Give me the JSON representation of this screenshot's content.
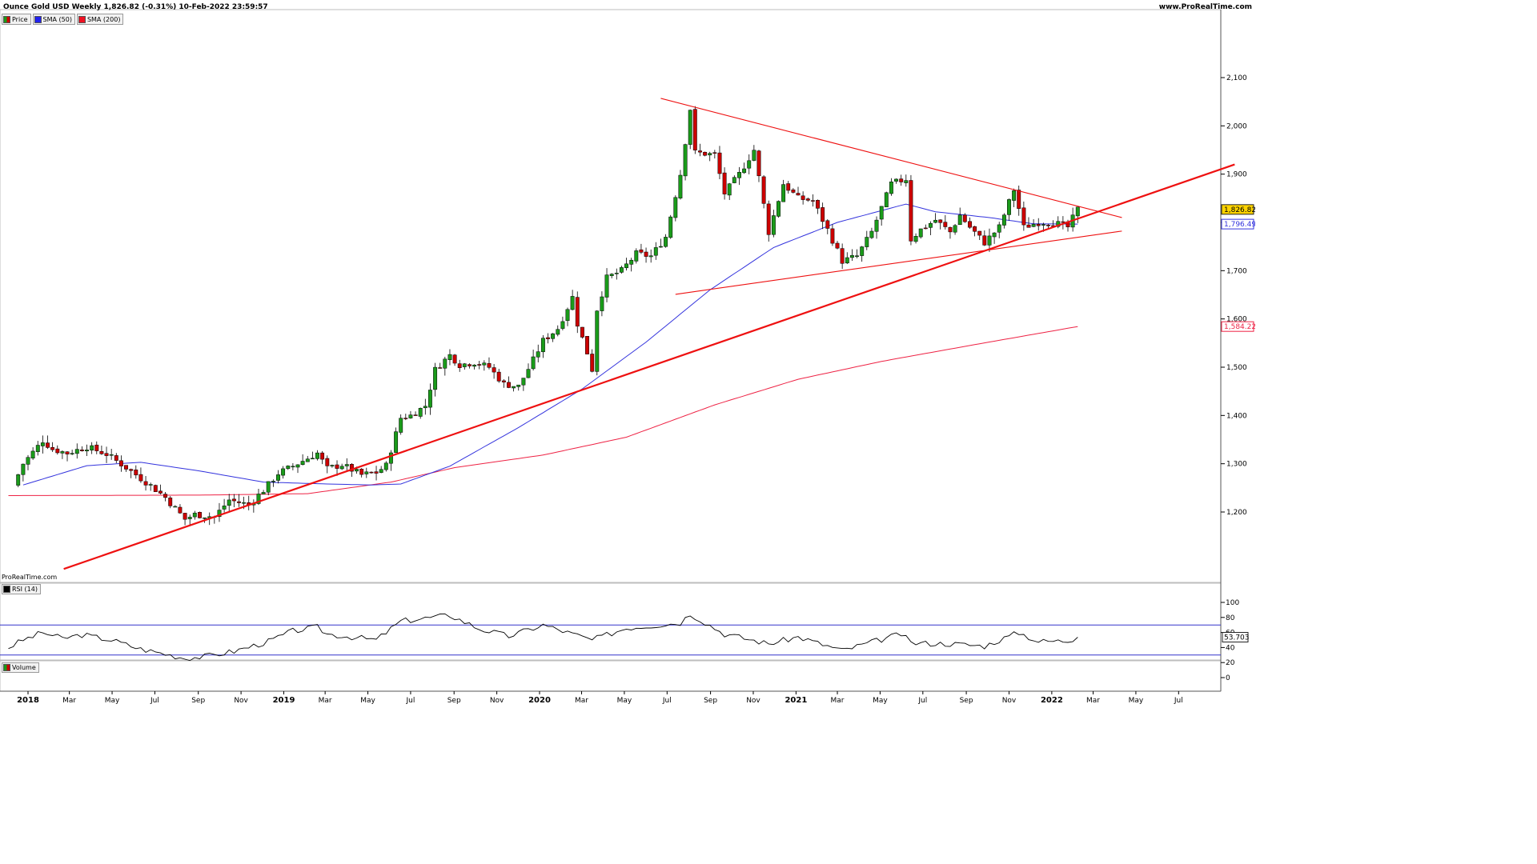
{
  "header": {
    "title": "Ounce Gold USD Weekly 1,826.82 (-0.31%) 10-Feb-2022 23:59:57",
    "brand": "www.ProRealTime.com"
  },
  "legend": [
    {
      "label": "Price",
      "color": "#1a9b1a",
      "color2": "#cc0000"
    },
    {
      "label": "SMA (50)",
      "color": "#2222ee"
    },
    {
      "label": "SMA (200)",
      "color": "#ee1122"
    }
  ],
  "watermark": "ProRealTime.com",
  "rsi_label": "RSI (14)",
  "volume_label": "Volume",
  "colors": {
    "up": "#1a9b1a",
    "down": "#cc0000",
    "sma50": "#3333dd",
    "sma200": "#ee2244",
    "trend": "#ee1111",
    "rsi": "#000000",
    "rsi_bands": "#3333cc"
  },
  "chart_data": [
    {
      "type": "candlestick",
      "title": "Ounce Gold USD Weekly",
      "last_price": "1,826.82",
      "sma50_value": "1,796.49",
      "sma200_value": "1,584.22",
      "y_ticks": [
        "1,200",
        "1,300",
        "1,400",
        "1,500",
        "1,600",
        "1,700",
        "1,800",
        "1,900",
        "2,000",
        "2,100"
      ],
      "y_tick_values": [
        1200,
        1300,
        1400,
        1500,
        1600,
        1700,
        1800,
        1900,
        2000,
        2100
      ],
      "x_ticks": [
        "2018",
        "Mar",
        "May",
        "Jul",
        "Sep",
        "Nov",
        "2019",
        "Mar",
        "May",
        "Jul",
        "Sep",
        "Nov",
        "2020",
        "Mar",
        "May",
        "Jul",
        "Sep",
        "Nov",
        "2021",
        "Mar",
        "May",
        "Jul",
        "Sep",
        "Nov",
        "2022",
        "Mar",
        "May",
        "Jul"
      ],
      "x_tick_dates": [
        "2018-01-01",
        "2018-03-01",
        "2018-05-01",
        "2018-07-01",
        "2018-09-01",
        "2018-11-01",
        "2019-01-01",
        "2019-03-01",
        "2019-05-01",
        "2019-07-01",
        "2019-09-01",
        "2019-11-01",
        "2020-01-01",
        "2020-03-01",
        "2020-05-01",
        "2020-07-01",
        "2020-09-01",
        "2020-11-01",
        "2021-01-01",
        "2021-03-01",
        "2021-05-01",
        "2021-07-01",
        "2021-09-01",
        "2021-11-01",
        "2022-01-01",
        "2022-03-01",
        "2022-05-01",
        "2022-07-01"
      ],
      "price_anchors": [
        [
          "2017-12-11",
          1255
        ],
        [
          "2017-12-25",
          1300
        ],
        [
          "2018-01-22",
          1348
        ],
        [
          "2018-02-05",
          1330
        ],
        [
          "2018-02-26",
          1322
        ],
        [
          "2018-03-26",
          1335
        ],
        [
          "2018-04-23",
          1320
        ],
        [
          "2018-05-21",
          1292
        ],
        [
          "2018-06-25",
          1255
        ],
        [
          "2018-07-16",
          1230
        ],
        [
          "2018-08-13",
          1185
        ],
        [
          "2018-08-27",
          1195
        ],
        [
          "2018-09-24",
          1190
        ],
        [
          "2018-10-15",
          1225
        ],
        [
          "2018-11-12",
          1215
        ],
        [
          "2018-12-03",
          1245
        ],
        [
          "2018-12-24",
          1280
        ],
        [
          "2019-01-14",
          1295
        ],
        [
          "2019-02-18",
          1322
        ],
        [
          "2019-03-04",
          1290
        ],
        [
          "2019-03-25",
          1298
        ],
        [
          "2019-04-22",
          1277
        ],
        [
          "2019-05-13",
          1282
        ],
        [
          "2019-05-27",
          1296
        ],
        [
          "2019-06-17",
          1395
        ],
        [
          "2019-07-01",
          1400
        ],
        [
          "2019-07-22",
          1420
        ],
        [
          "2019-08-05",
          1495
        ],
        [
          "2019-08-26",
          1525
        ],
        [
          "2019-09-09",
          1505
        ],
        [
          "2019-09-30",
          1510
        ],
        [
          "2019-10-21",
          1500
        ],
        [
          "2019-11-11",
          1465
        ],
        [
          "2019-12-02",
          1460
        ],
        [
          "2019-12-23",
          1515
        ],
        [
          "2020-01-06",
          1555
        ],
        [
          "2020-01-27",
          1580
        ],
        [
          "2020-02-17",
          1645
        ],
        [
          "2020-02-24",
          1590
        ],
        [
          "2020-03-09",
          1530
        ],
        [
          "2020-03-16",
          1495
        ],
        [
          "2020-03-23",
          1620
        ],
        [
          "2020-04-06",
          1685
        ],
        [
          "2020-04-27",
          1700
        ],
        [
          "2020-05-18",
          1735
        ],
        [
          "2020-06-08",
          1730
        ],
        [
          "2020-06-29",
          1770
        ],
        [
          "2020-07-20",
          1900
        ],
        [
          "2020-08-03",
          2035
        ],
        [
          "2020-08-10",
          1945
        ],
        [
          "2020-09-07",
          1940
        ],
        [
          "2020-09-21",
          1860
        ],
        [
          "2020-10-12",
          1900
        ],
        [
          "2020-11-02",
          1950
        ],
        [
          "2020-11-23",
          1780
        ],
        [
          "2020-12-14",
          1880
        ],
        [
          "2021-01-04",
          1850
        ],
        [
          "2021-01-25",
          1845
        ],
        [
          "2021-02-15",
          1785
        ],
        [
          "2021-03-08",
          1720
        ],
        [
          "2021-03-29",
          1730
        ],
        [
          "2021-04-19",
          1780
        ],
        [
          "2021-05-17",
          1880
        ],
        [
          "2021-06-07",
          1890
        ],
        [
          "2021-06-14",
          1765
        ],
        [
          "2021-06-28",
          1785
        ],
        [
          "2021-07-19",
          1805
        ],
        [
          "2021-08-09",
          1780
        ],
        [
          "2021-08-23",
          1815
        ],
        [
          "2021-09-06",
          1790
        ],
        [
          "2021-09-27",
          1758
        ],
        [
          "2021-10-18",
          1790
        ],
        [
          "2021-11-08",
          1868
        ],
        [
          "2021-11-22",
          1790
        ],
        [
          "2021-12-13",
          1800
        ],
        [
          "2022-01-03",
          1800
        ],
        [
          "2022-01-24",
          1790
        ],
        [
          "2022-02-07",
          1827
        ]
      ],
      "sma50_anchors": [
        [
          "2017-12-25",
          1256
        ],
        [
          "2018-03-26",
          1296
        ],
        [
          "2018-06-11",
          1303
        ],
        [
          "2018-09-03",
          1285
        ],
        [
          "2018-12-03",
          1262
        ],
        [
          "2019-03-04",
          1258
        ],
        [
          "2019-05-06",
          1256
        ],
        [
          "2019-06-17",
          1258
        ],
        [
          "2019-08-26",
          1295
        ],
        [
          "2019-12-02",
          1375
        ],
        [
          "2020-03-02",
          1455
        ],
        [
          "2020-06-01",
          1552
        ],
        [
          "2020-08-31",
          1660
        ],
        [
          "2020-11-30",
          1748
        ],
        [
          "2021-03-01",
          1800
        ],
        [
          "2021-06-07",
          1838
        ],
        [
          "2021-07-19",
          1822
        ],
        [
          "2021-10-04",
          1810
        ],
        [
          "2021-12-06",
          1797
        ],
        [
          "2022-02-07",
          1796.5
        ]
      ],
      "sma200_anchors": [
        [
          "2017-12-04",
          1234
        ],
        [
          "2018-09-03",
          1235
        ],
        [
          "2019-02-04",
          1238
        ],
        [
          "2019-06-03",
          1262
        ],
        [
          "2019-09-02",
          1292
        ],
        [
          "2020-01-06",
          1318
        ],
        [
          "2020-05-04",
          1355
        ],
        [
          "2020-09-07",
          1422
        ],
        [
          "2021-01-04",
          1475
        ],
        [
          "2021-05-03",
          1512
        ],
        [
          "2021-09-06",
          1545
        ],
        [
          "2022-02-07",
          1584.2
        ]
      ],
      "trendlines": [
        {
          "name": "long-term-support",
          "from": [
            "2018-02-21",
            1082
          ],
          "to": [
            "2022-09-19",
            1920
          ],
          "weight": "heavy"
        },
        {
          "name": "upper-resistance",
          "from": [
            "2020-06-22",
            2057
          ],
          "to": [
            "2022-04-11",
            1810
          ]
        },
        {
          "name": "lower-support",
          "from": [
            "2020-07-13",
            1651
          ],
          "to": [
            "2022-04-11",
            1782
          ]
        }
      ]
    },
    {
      "type": "line",
      "title": "RSI (14)",
      "last_value": "53.703",
      "y_ticks": [
        "0",
        "20",
        "40",
        "60",
        "80",
        "100"
      ],
      "y_tick_values": [
        0,
        20,
        40,
        60,
        80,
        100
      ],
      "bands": [
        30,
        70
      ],
      "rsi_anchors": [
        [
          "2017-12-04",
          40
        ],
        [
          "2017-12-25",
          50
        ],
        [
          "2018-01-22",
          60
        ],
        [
          "2018-02-19",
          52
        ],
        [
          "2018-03-19",
          57
        ],
        [
          "2018-04-30",
          50
        ],
        [
          "2018-06-11",
          38
        ],
        [
          "2018-08-13",
          26
        ],
        [
          "2018-09-10",
          28
        ],
        [
          "2018-10-22",
          35
        ],
        [
          "2018-12-10",
          48
        ],
        [
          "2019-01-14",
          62
        ],
        [
          "2019-02-18",
          67
        ],
        [
          "2019-03-04",
          58
        ],
        [
          "2019-05-13",
          50
        ],
        [
          "2019-06-17",
          75
        ],
        [
          "2019-08-26",
          83
        ],
        [
          "2019-10-07",
          65
        ],
        [
          "2019-11-18",
          55
        ],
        [
          "2020-01-06",
          70
        ],
        [
          "2020-03-16",
          50
        ],
        [
          "2020-05-04",
          66
        ],
        [
          "2020-07-20",
          73
        ],
        [
          "2020-08-03",
          85
        ],
        [
          "2020-09-21",
          58
        ],
        [
          "2020-11-23",
          45
        ],
        [
          "2021-01-04",
          54
        ],
        [
          "2021-03-08",
          36
        ],
        [
          "2021-05-31",
          58
        ],
        [
          "2021-06-14",
          46
        ],
        [
          "2021-08-09",
          45
        ],
        [
          "2021-09-27",
          42
        ],
        [
          "2021-11-15",
          60
        ],
        [
          "2021-12-13",
          48
        ],
        [
          "2022-01-24",
          49
        ],
        [
          "2022-02-07",
          53.703
        ]
      ]
    }
  ]
}
